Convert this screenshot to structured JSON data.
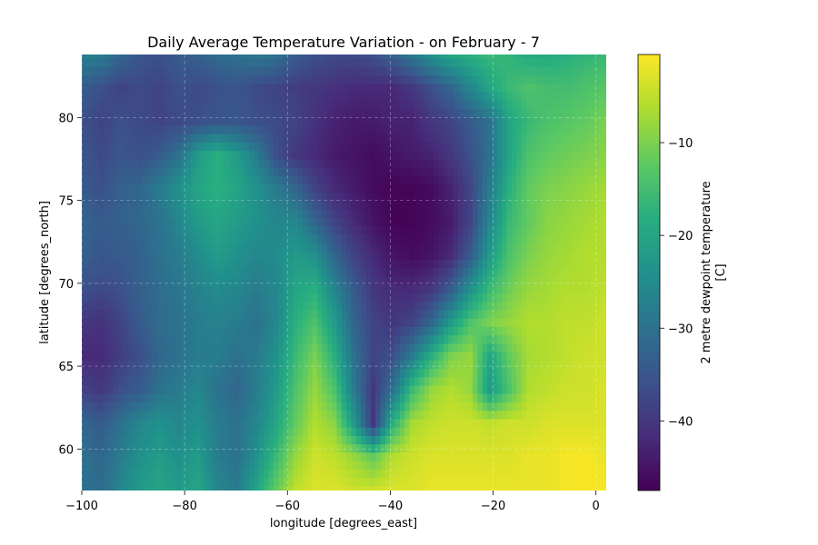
{
  "chart_data": {
    "type": "heatmap",
    "title": "Daily Average Temperature Variation - on February - 7",
    "xlabel": "longitude [degrees_east]",
    "ylabel": "latitude [degrees_north]",
    "xlim": [
      -100,
      2
    ],
    "ylim": [
      57.5,
      83.8
    ],
    "xticks": [
      -100,
      -80,
      -60,
      -40,
      -20,
      0
    ],
    "yticks": [
      60,
      65,
      70,
      75,
      80
    ],
    "xtick_labels": [
      "−100",
      "−80",
      "−60",
      "−40",
      "−20",
      "0"
    ],
    "ytick_labels": [
      "60",
      "65",
      "70",
      "75",
      "80"
    ],
    "grid": true,
    "colormap": "viridis",
    "colorbar": {
      "label_line1": "2 metre dewpoint temperature",
      "label_line2": "[C]",
      "vmin": -47.5,
      "vmax": -0.5,
      "ticks": [
        -10,
        -20,
        -30,
        -40
      ],
      "tick_labels": [
        "−10",
        "−20",
        "−30",
        "−40"
      ]
    },
    "grid_resolution": {
      "nx": 28,
      "ny": 14
    },
    "x_centers": [
      -98.2,
      -94.5,
      -90.9,
      -87.3,
      -83.6,
      -80.0,
      -76.4,
      -72.7,
      -69.1,
      -65.5,
      -61.8,
      -58.2,
      -54.5,
      -50.9,
      -47.3,
      -43.6,
      -40.0,
      -36.4,
      -32.7,
      -29.1,
      -25.5,
      -21.8,
      -18.2,
      -14.5,
      -10.9,
      -7.3,
      -3.6,
      0.0
    ],
    "y_centers": [
      82.9,
      81.0,
      79.1,
      77.2,
      75.3,
      73.4,
      71.6,
      69.7,
      67.8,
      65.9,
      64.0,
      62.1,
      60.2,
      58.4
    ],
    "values": [
      [
        -27,
        -28,
        -32,
        -35,
        -36,
        -34,
        -33,
        -31,
        -30,
        -29,
        -30,
        -34,
        -36,
        -37,
        -37,
        -36,
        -33,
        -29,
        -24,
        -20,
        -18,
        -16,
        -17,
        -19,
        -19,
        -18,
        -17,
        -16
      ],
      [
        -34,
        -36,
        -38,
        -37,
        -38,
        -36,
        -37,
        -36,
        -35,
        -37,
        -38,
        -39,
        -40,
        -41,
        -42,
        -42,
        -42,
        -40,
        -36,
        -32,
        -26,
        -20,
        -16,
        -14,
        -15,
        -15,
        -14,
        -13
      ],
      [
        -36,
        -38,
        -36,
        -37,
        -38,
        -37,
        -36,
        -35,
        -35,
        -36,
        -37,
        -38,
        -41,
        -43,
        -44,
        -44,
        -43,
        -43,
        -40,
        -38,
        -34,
        -30,
        -20,
        -16,
        -14,
        -13,
        -12,
        -10
      ],
      [
        -35,
        -37,
        -35,
        -36,
        -34,
        -30,
        -22,
        -18,
        -22,
        -28,
        -36,
        -40,
        -42,
        -44,
        -45,
        -46,
        -45,
        -44,
        -43,
        -40,
        -36,
        -30,
        -20,
        -14,
        -12,
        -11,
        -10,
        -9
      ],
      [
        -34,
        -36,
        -33,
        -32,
        -28,
        -24,
        -20,
        -18,
        -20,
        -24,
        -28,
        -32,
        -38,
        -42,
        -44,
        -46,
        -47,
        -47,
        -46,
        -43,
        -38,
        -28,
        -18,
        -12,
        -10,
        -9,
        -8,
        -7
      ],
      [
        -32,
        -34,
        -33,
        -32,
        -30,
        -26,
        -22,
        -20,
        -22,
        -24,
        -26,
        -26,
        -32,
        -38,
        -42,
        -45,
        -47,
        -47,
        -46,
        -44,
        -38,
        -26,
        -16,
        -12,
        -9,
        -8,
        -7,
        -6
      ],
      [
        -33,
        -35,
        -34,
        -33,
        -30,
        -28,
        -25,
        -22,
        -24,
        -26,
        -25,
        -22,
        -24,
        -32,
        -38,
        -42,
        -45,
        -46,
        -45,
        -42,
        -34,
        -22,
        -14,
        -10,
        -8,
        -7,
        -6,
        -6
      ],
      [
        -36,
        -37,
        -36,
        -33,
        -31,
        -29,
        -27,
        -25,
        -26,
        -28,
        -26,
        -20,
        -18,
        -26,
        -34,
        -40,
        -42,
        -42,
        -40,
        -34,
        -24,
        -16,
        -11,
        -8,
        -7,
        -6,
        -6,
        -5
      ],
      [
        -40,
        -41,
        -38,
        -34,
        -31,
        -30,
        -28,
        -27,
        -28,
        -30,
        -26,
        -18,
        -14,
        -22,
        -32,
        -38,
        -40,
        -38,
        -32,
        -22,
        -14,
        -10,
        -8,
        -6,
        -6,
        -5,
        -5,
        -4
      ],
      [
        -42,
        -42,
        -39,
        -36,
        -32,
        -30,
        -28,
        -28,
        -30,
        -28,
        -24,
        -16,
        -10,
        -18,
        -30,
        -38,
        -36,
        -28,
        -18,
        -10,
        -8,
        -20,
        -12,
        -7,
        -6,
        -5,
        -4,
        -4
      ],
      [
        -38,
        -40,
        -36,
        -34,
        -30,
        -28,
        -26,
        -30,
        -32,
        -28,
        -22,
        -14,
        -8,
        -14,
        -28,
        -40,
        -30,
        -16,
        -8,
        -6,
        -8,
        -22,
        -14,
        -6,
        -5,
        -4,
        -4,
        -3
      ],
      [
        -32,
        -34,
        -30,
        -26,
        -24,
        -26,
        -24,
        -28,
        -30,
        -26,
        -20,
        -12,
        -6,
        -9,
        -22,
        -40,
        -18,
        -7,
        -5,
        -4,
        -4,
        -5,
        -4,
        -4,
        -3,
        -3,
        -3,
        -3
      ],
      [
        -30,
        -32,
        -28,
        -24,
        -22,
        -24,
        -22,
        -28,
        -30,
        -24,
        -16,
        -8,
        -4,
        -5,
        -8,
        -12,
        -6,
        -4,
        -3,
        -3,
        -3,
        -3,
        -3,
        -2,
        -2,
        -1,
        -1,
        -2
      ],
      [
        -30,
        -31,
        -26,
        -22,
        -20,
        -22,
        -20,
        -26,
        -28,
        -20,
        -12,
        -5,
        -3,
        -3,
        -4,
        -4,
        -3,
        -3,
        -2,
        -2,
        -2,
        -2,
        -2,
        -2,
        -2,
        -1,
        -1,
        -1
      ]
    ]
  }
}
